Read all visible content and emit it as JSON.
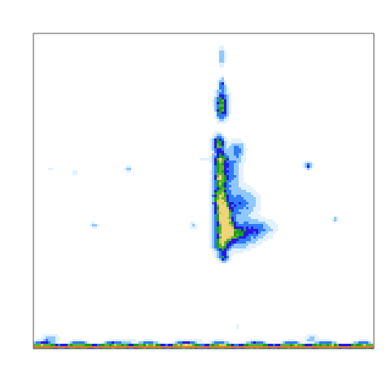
{
  "chart_data": {
    "type": "heatmap",
    "title": "",
    "xlabel": "",
    "ylabel": "",
    "grid": false,
    "legend": "none",
    "colors": {
      "level1": "#e3f1ff",
      "level2": "#8ec8ff",
      "level3": "#2f7bff",
      "level4": "#2a17e6",
      "level5": "#16a01a",
      "level6": "#5db234",
      "level7": "#c8cf4a",
      "level8": "#f2d37a",
      "baseline": "#e07b36"
    },
    "levels": [
      0.05,
      0.15,
      0.3,
      0.45,
      0.6,
      0.75,
      0.88,
      0.96
    ],
    "x_range": [
      0,
      1
    ],
    "y_range": [
      0,
      1
    ],
    "peaks": [
      {
        "x": 0.555,
        "y": 0.925,
        "sx": 0.006,
        "sy": 0.02,
        "a": 0.3
      },
      {
        "x": 0.555,
        "y": 0.84,
        "sx": 0.006,
        "sy": 0.012,
        "a": 0.45
      },
      {
        "x": 0.555,
        "y": 0.79,
        "sx": 0.012,
        "sy": 0.022,
        "a": 0.55
      },
      {
        "x": 0.555,
        "y": 0.755,
        "sx": 0.011,
        "sy": 0.02,
        "a": 0.58
      },
      {
        "x": 0.545,
        "y": 0.65,
        "sx": 0.011,
        "sy": 0.016,
        "a": 0.85
      },
      {
        "x": 0.55,
        "y": 0.595,
        "sx": 0.012,
        "sy": 0.022,
        "a": 0.78
      },
      {
        "x": 0.55,
        "y": 0.54,
        "sx": 0.012,
        "sy": 0.02,
        "a": 0.8
      },
      {
        "x": 0.55,
        "y": 0.48,
        "sx": 0.014,
        "sy": 0.025,
        "a": 0.92
      },
      {
        "x": 0.56,
        "y": 0.43,
        "sx": 0.016,
        "sy": 0.022,
        "a": 0.95
      },
      {
        "x": 0.565,
        "y": 0.38,
        "sx": 0.018,
        "sy": 0.024,
        "a": 0.97
      },
      {
        "x": 0.555,
        "y": 0.33,
        "sx": 0.014,
        "sy": 0.018,
        "a": 0.82
      },
      {
        "x": 0.6,
        "y": 0.36,
        "sx": 0.035,
        "sy": 0.025,
        "a": 0.55
      },
      {
        "x": 0.66,
        "y": 0.38,
        "sx": 0.03,
        "sy": 0.018,
        "a": 0.35
      },
      {
        "x": 0.61,
        "y": 0.46,
        "sx": 0.03,
        "sy": 0.03,
        "a": 0.4
      },
      {
        "x": 0.58,
        "y": 0.56,
        "sx": 0.02,
        "sy": 0.04,
        "a": 0.35
      },
      {
        "x": 0.6,
        "y": 0.63,
        "sx": 0.015,
        "sy": 0.02,
        "a": 0.3
      },
      {
        "x": 0.56,
        "y": 0.29,
        "sx": 0.01,
        "sy": 0.01,
        "a": 0.5
      },
      {
        "x": 0.05,
        "y": 0.03,
        "sx": 0.015,
        "sy": 0.01,
        "a": 0.3
      },
      {
        "x": 0.82,
        "y": 0.03,
        "sx": 0.012,
        "sy": 0.01,
        "a": 0.22
      },
      {
        "x": 0.28,
        "y": 0.02,
        "sx": 0.02,
        "sy": 0.008,
        "a": 0.18
      },
      {
        "x": 0.47,
        "y": 0.02,
        "sx": 0.02,
        "sy": 0.008,
        "a": 0.15
      },
      {
        "x": 0.81,
        "y": 0.58,
        "sx": 0.008,
        "sy": 0.008,
        "a": 0.45
      },
      {
        "x": 0.28,
        "y": 0.57,
        "sx": 0.006,
        "sy": 0.006,
        "a": 0.3
      },
      {
        "x": 0.18,
        "y": 0.39,
        "sx": 0.008,
        "sy": 0.006,
        "a": 0.18
      },
      {
        "x": 0.89,
        "y": 0.41,
        "sx": 0.006,
        "sy": 0.006,
        "a": 0.22
      },
      {
        "x": 0.47,
        "y": 0.39,
        "sx": 0.006,
        "sy": 0.008,
        "a": 0.18
      },
      {
        "x": 0.12,
        "y": 0.56,
        "sx": 0.006,
        "sy": 0.006,
        "a": 0.12
      },
      {
        "x": 0.05,
        "y": 0.57,
        "sx": 0.004,
        "sy": 0.006,
        "a": 0.1
      },
      {
        "x": 0.54,
        "y": 0.6,
        "sx": 0.05,
        "sy": 0.006,
        "a": 0.08
      },
      {
        "x": 0.6,
        "y": 0.07,
        "sx": 0.006,
        "sy": 0.006,
        "a": 0.1
      }
    ],
    "ridge": {
      "y": 0.008,
      "amplitude": 0.9
    }
  }
}
